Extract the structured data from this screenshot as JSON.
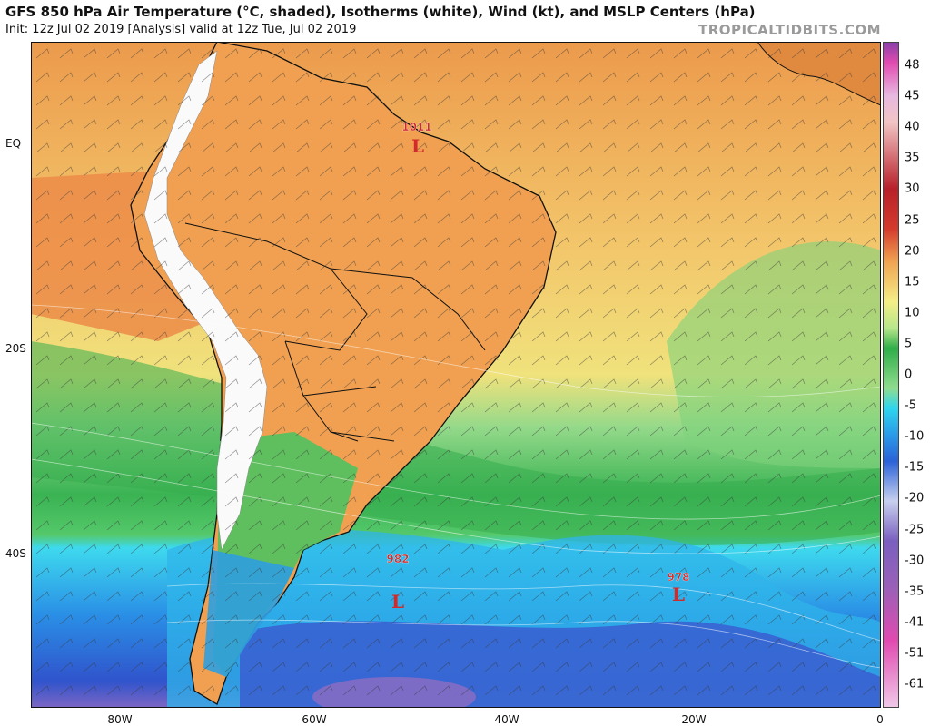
{
  "header": {
    "title": "GFS 850 hPa Air Temperature (°C, shaded), Isotherms (white), Wind (kt), and MSLP Centers (hPa)",
    "subtitle": "Init: 12z Jul 02 2019   [Analysis]   valid at 12z Tue, Jul 02 2019",
    "site": "TROPICALTIDBITS.COM"
  },
  "map": {
    "lat_labels": [
      "EQ",
      "20S",
      "40S"
    ],
    "lon_labels": [
      "80W",
      "60W",
      "40W",
      "20W",
      "0"
    ],
    "pressure_centers": [
      {
        "type": "L",
        "value": "1011"
      },
      {
        "type": "L",
        "value": "982"
      },
      {
        "type": "L",
        "value": "978"
      }
    ]
  },
  "colorbar": {
    "labels": [
      "48",
      "45",
      "40",
      "35",
      "30",
      "25",
      "20",
      "15",
      "10",
      "5",
      "0",
      "-5",
      "-10",
      "-15",
      "-20",
      "-25",
      "-30",
      "-35",
      "-41",
      "-51",
      "-61"
    ],
    "colors": {
      "hot": "#d43a2c",
      "warm": "#f0a452",
      "yellow": "#f4ee86",
      "green": "#2fae48",
      "lightgreen": "#8fdc8e",
      "cyan": "#2fd6ee",
      "blue": "#2a62d8",
      "purple": "#7a5fc0",
      "magenta": "#e14ab0"
    }
  }
}
